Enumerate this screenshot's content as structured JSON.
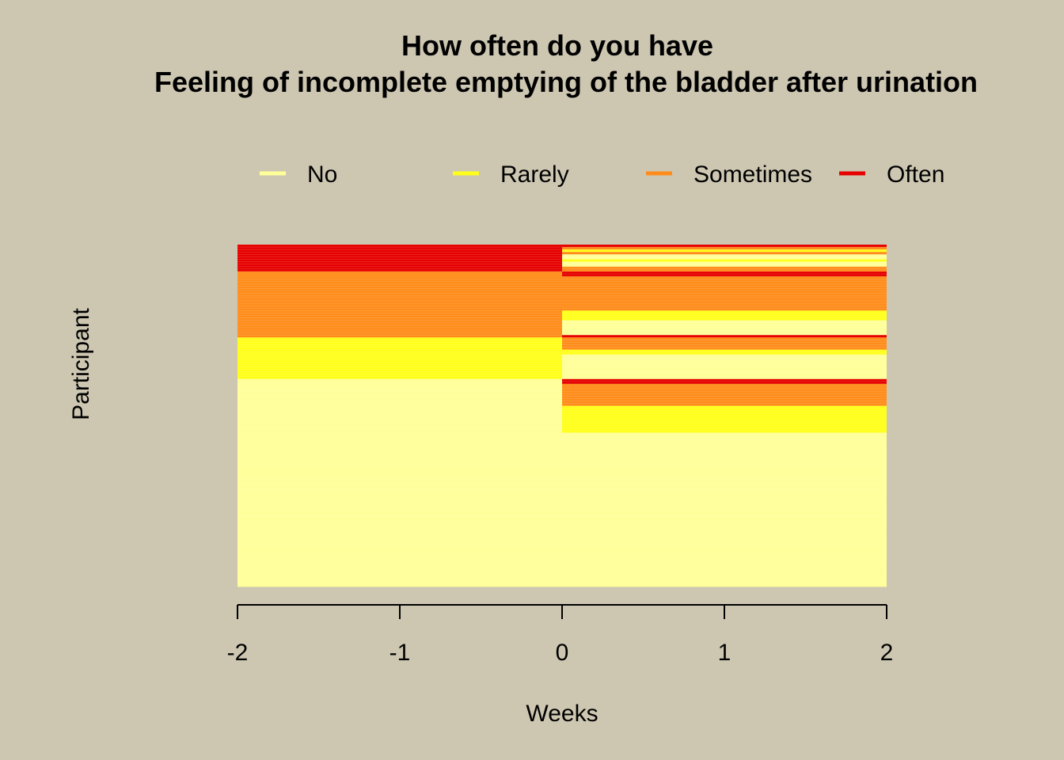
{
  "chart_data": {
    "type": "heatmap",
    "title_lines": [
      "How often do you have",
      "Feeling of incomplete emptying of the bladder after urination"
    ],
    "xlabel": "Weeks",
    "ylabel": "Participant",
    "xlim": [
      -2,
      2
    ],
    "x_ticks": [
      -2,
      -1,
      0,
      1,
      2
    ],
    "legend_placement": "top",
    "categories": [
      "No",
      "Rarely",
      "Sometimes",
      "Often"
    ],
    "category_colors": {
      "No": "#FFFF99",
      "Rarely": "#FFFF1A",
      "Sometimes": "#FF8C1A",
      "Often": "#E60000"
    },
    "n_participants": 140,
    "periods": [
      {
        "x_range": [
          -2,
          0
        ],
        "groups": [
          {
            "value": "Often",
            "count": 11
          },
          {
            "value": "Sometimes",
            "count": 27
          },
          {
            "value": "Rarely",
            "count": 17
          },
          {
            "value": "No",
            "count": 85
          }
        ]
      },
      {
        "x_range": [
          0,
          2
        ],
        "groups": [
          {
            "value": "Often",
            "count": 1
          },
          {
            "value": "Sometimes",
            "count": 1
          },
          {
            "value": "Rarely",
            "count": 1
          },
          {
            "value": "Sometimes",
            "count": 1
          },
          {
            "value": "No",
            "count": 2
          },
          {
            "value": "Rarely",
            "count": 1
          },
          {
            "value": "No",
            "count": 2
          },
          {
            "value": "Sometimes",
            "count": 2
          },
          {
            "value": "Often",
            "count": 2
          },
          {
            "value": "Sometimes",
            "count": 14
          },
          {
            "value": "Rarely",
            "count": 4
          },
          {
            "value": "No",
            "count": 6
          },
          {
            "value": "Often",
            "count": 1
          },
          {
            "value": "Sometimes",
            "count": 5
          },
          {
            "value": "Rarely",
            "count": 2
          },
          {
            "value": "No",
            "count": 10
          },
          {
            "value": "Often",
            "count": 2
          },
          {
            "value": "Sometimes",
            "count": 9
          },
          {
            "value": "Rarely",
            "count": 11
          },
          {
            "value": "No",
            "count": 63
          }
        ]
      }
    ],
    "grid": false
  }
}
